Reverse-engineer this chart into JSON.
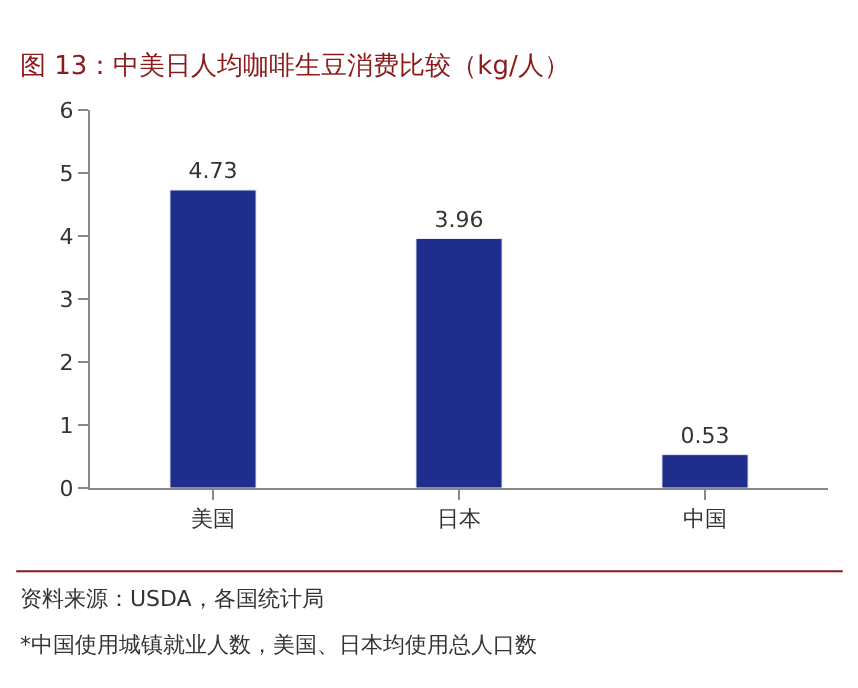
{
  "chart_data": {
    "type": "bar",
    "title": "图 13：中美日人均咖啡生豆消费比较（kg/人）",
    "categories": [
      "美国",
      "日本",
      "中国"
    ],
    "values": [
      4.73,
      3.96,
      0.53
    ],
    "color": "#1f2d8c",
    "ylim": [
      0,
      6
    ],
    "yticks": [
      0,
      1,
      2,
      3,
      4,
      5,
      6
    ],
    "data_labels": true,
    "annotations": [
      "资料来源：USDA，各国统计局",
      "*中国使用城镇就业人数，美国、日本均使用总人口数"
    ]
  }
}
